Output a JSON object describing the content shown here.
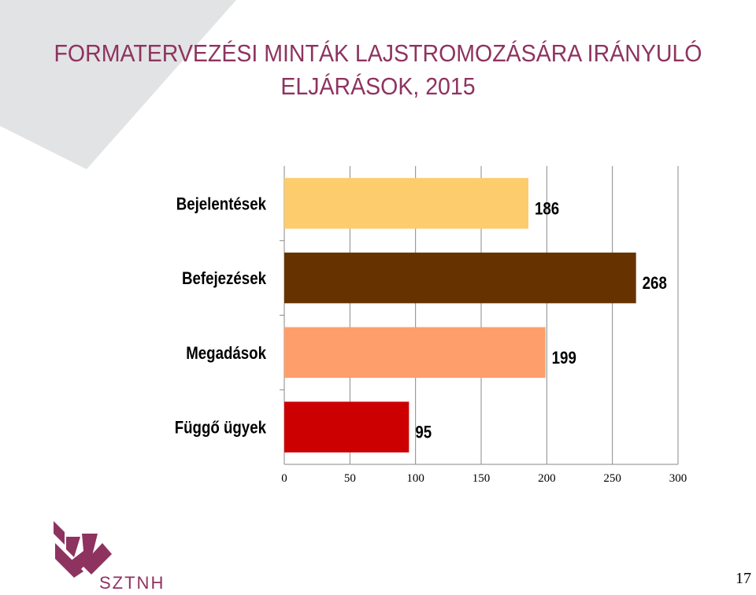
{
  "title": {
    "line1": "FORMATERVEZÉSI MINTÁK LAJSTROMOZÁSÁRA IRÁNYULÓ",
    "line2": "ELJÁRÁSOK, 2015"
  },
  "colors": {
    "title": "#8e3360",
    "background_shape": "#e2e3e4",
    "logo": "#8e3360"
  },
  "chart_data": {
    "type": "bar",
    "orientation": "horizontal",
    "categories": [
      "Bejelentések",
      "Befejezések",
      "Megadások",
      "Függő ügyek"
    ],
    "values": [
      186,
      268,
      199,
      95
    ],
    "data_labels": [
      "186",
      "268",
      "199",
      "95"
    ],
    "bar_colors": [
      "#fdcc6c",
      "#663300",
      "#fe9f6b",
      "#cc0001"
    ],
    "xlim": [
      0,
      300
    ],
    "xticks": [
      0,
      50,
      100,
      150,
      200,
      250,
      300
    ],
    "grid": true,
    "legend": "none"
  },
  "logo": {
    "text": "SZTNH"
  },
  "page_number": "17"
}
